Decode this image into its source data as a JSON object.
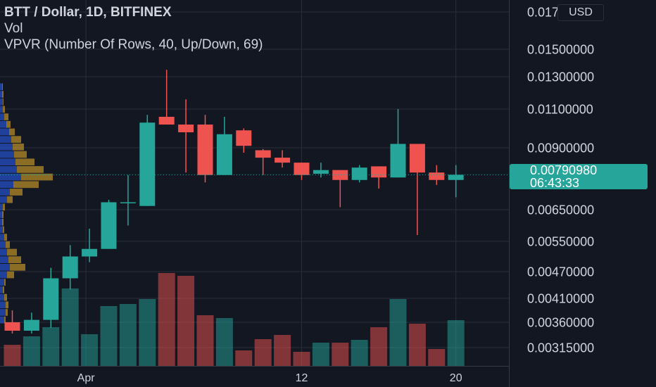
{
  "legend": {
    "title": "BTT / Dollar, 1D, BITFINEX",
    "vol": "Vol",
    "vpvr": "VPVR (Number Of Rows, 40, Up/Down, 69)"
  },
  "currency_button": "USD",
  "last_price": {
    "value": "0.00790980",
    "countdown": "06:43:33",
    "color": "#26a69a"
  },
  "colors": {
    "background": "#131722",
    "grid": "#2a2e39",
    "up": "#26a69a",
    "down": "#ef5350",
    "vpvr_up": "#2962ff",
    "vpvr_down": "#f0b429",
    "text": "#d1d4dc"
  },
  "chart_data": {
    "type": "candlestick",
    "symbol": "BTT / Dollar",
    "interval": "1D",
    "exchange": "BITFINEX",
    "y_axis": {
      "ticks": [
        "0.01700000",
        "0.01500000",
        "0.01300000",
        "0.01100000",
        "0.00900000",
        "0.00790980",
        "0.00650000",
        "0.00550000",
        "0.00470000",
        "0.00410000",
        "0.00360000",
        "0.00315000"
      ]
    },
    "x_axis": {
      "ticks": [
        {
          "label": "Apr",
          "index": 4
        },
        {
          "label": "12",
          "index": 15
        },
        {
          "label": "20",
          "index": 23
        }
      ]
    },
    "candles": [
      {
        "open": 0.0036,
        "high": 0.00385,
        "low": 0.0034,
        "close": 0.00345,
        "volume": 30
      },
      {
        "open": 0.00345,
        "high": 0.0038,
        "low": 0.0034,
        "close": 0.00365,
        "volume": 42
      },
      {
        "open": 0.00365,
        "high": 0.0048,
        "low": 0.0035,
        "close": 0.00455,
        "volume": 55
      },
      {
        "open": 0.00455,
        "high": 0.0054,
        "low": 0.0043,
        "close": 0.0051,
        "volume": 110
      },
      {
        "open": 0.0051,
        "high": 0.0059,
        "low": 0.00495,
        "close": 0.0053,
        "volume": 45
      },
      {
        "open": 0.0053,
        "high": 0.0069,
        "low": 0.0053,
        "close": 0.0068,
        "volume": 85
      },
      {
        "open": 0.0068,
        "high": 0.0079,
        "low": 0.006,
        "close": 0.0068,
        "volume": 88
      },
      {
        "open": 0.00665,
        "high": 0.0107,
        "low": 0.00665,
        "close": 0.0103,
        "volume": 95
      },
      {
        "open": 0.0106,
        "high": 0.0135,
        "low": 0.0102,
        "close": 0.0102,
        "volume": 132
      },
      {
        "open": 0.0102,
        "high": 0.0116,
        "low": 0.008,
        "close": 0.0098,
        "volume": 128
      },
      {
        "open": 0.0102,
        "high": 0.0107,
        "low": 0.0076,
        "close": 0.0079,
        "volume": 72
      },
      {
        "open": 0.0079,
        "high": 0.0106,
        "low": 0.0079,
        "close": 0.0097,
        "volume": 68
      },
      {
        "open": 0.0099,
        "high": 0.01,
        "low": 0.0088,
        "close": 0.0091,
        "volume": 22
      },
      {
        "open": 0.0089,
        "high": 0.00895,
        "low": 0.0079,
        "close": 0.0086,
        "volume": 38
      },
      {
        "open": 0.0086,
        "high": 0.0089,
        "low": 0.0082,
        "close": 0.0084,
        "volume": 44
      },
      {
        "open": 0.0084,
        "high": 0.0084,
        "low": 0.0077,
        "close": 0.0079,
        "volume": 20
      },
      {
        "open": 0.00795,
        "high": 0.0084,
        "low": 0.0078,
        "close": 0.0081,
        "volume": 33
      },
      {
        "open": 0.0081,
        "high": 0.0081,
        "low": 0.0066,
        "close": 0.0077,
        "volume": 33
      },
      {
        "open": 0.0077,
        "high": 0.0083,
        "low": 0.0076,
        "close": 0.0082,
        "volume": 37
      },
      {
        "open": 0.00825,
        "high": 0.00825,
        "low": 0.00735,
        "close": 0.0078,
        "volume": 55
      },
      {
        "open": 0.0078,
        "high": 0.011,
        "low": 0.0078,
        "close": 0.0092,
        "volume": 95
      },
      {
        "open": 0.0092,
        "high": 0.0092,
        "low": 0.0057,
        "close": 0.008,
        "volume": 60
      },
      {
        "open": 0.008,
        "high": 0.0083,
        "low": 0.0075,
        "close": 0.0077,
        "volume": 24
      },
      {
        "open": 0.0077,
        "high": 0.0083,
        "low": 0.007,
        "close": 0.00791,
        "volume": 65
      }
    ],
    "volume_profile": [
      {
        "up": 3,
        "down": 1
      },
      {
        "up": 3,
        "down": 2
      },
      {
        "up": 4,
        "down": 1
      },
      {
        "up": 4,
        "down": 3
      },
      {
        "up": 6,
        "down": 6
      },
      {
        "up": 9,
        "down": 6
      },
      {
        "up": 13,
        "down": 8
      },
      {
        "up": 16,
        "down": 14
      },
      {
        "up": 18,
        "down": 16
      },
      {
        "up": 20,
        "down": 18
      },
      {
        "up": 22,
        "down": 27
      },
      {
        "up": 24,
        "down": 38
      },
      {
        "up": 30,
        "down": 45
      },
      {
        "up": 19,
        "down": 36
      },
      {
        "up": 14,
        "down": 18
      },
      {
        "up": 10,
        "down": 8
      },
      {
        "up": 4,
        "down": 3
      },
      {
        "up": 3,
        "down": 2
      },
      {
        "up": 3,
        "down": 2
      },
      {
        "up": 4,
        "down": 2
      },
      {
        "up": 6,
        "down": 4
      },
      {
        "up": 8,
        "down": 6
      },
      {
        "up": 10,
        "down": 14
      },
      {
        "up": 12,
        "down": 18
      },
      {
        "up": 14,
        "down": 22
      },
      {
        "up": 10,
        "down": 10
      },
      {
        "up": 6,
        "down": 2
      },
      {
        "up": 4,
        "down": 2
      },
      {
        "up": 6,
        "down": 4
      },
      {
        "up": 8,
        "down": 4
      },
      {
        "up": 8,
        "down": 3
      },
      {
        "up": 6,
        "down": 2
      }
    ]
  }
}
